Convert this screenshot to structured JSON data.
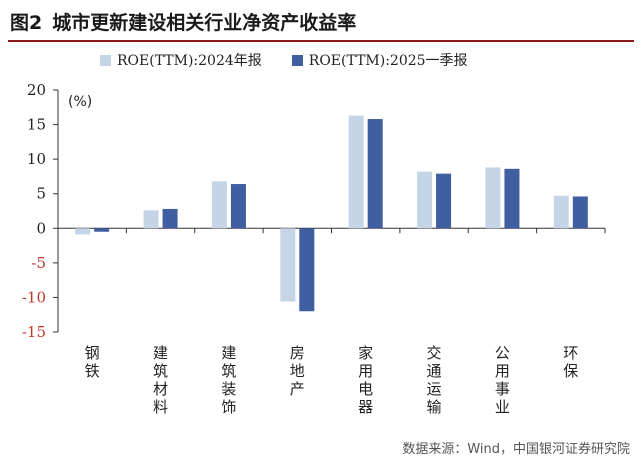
{
  "figure": {
    "label": "图2",
    "title": "城市更新建设相关行业净资产收益率",
    "source": "数据来源：Wind，中国银河证券研究院"
  },
  "colors": {
    "series_2024": "#c5d5e6",
    "series_2025": "#3f5fa0",
    "negative_tick": "#c0392b",
    "axis": "#333333",
    "title_rule": "#8b1a1a"
  },
  "chart_data": {
    "type": "bar",
    "title": "城市更新建设相关行业净资产收益率",
    "unit_label": "(%)",
    "ylim": [
      -15,
      20
    ],
    "yticks": [
      20,
      15,
      10,
      5,
      0,
      -5,
      -10,
      -15
    ],
    "grid": false,
    "legend_position": "top",
    "categories": [
      "钢铁",
      "建筑材料",
      "建筑装饰",
      "房地产",
      "家用电器",
      "交通运输",
      "公用事业",
      "环保"
    ],
    "series": [
      {
        "name": "ROE(TTM):2024年报",
        "values": [
          -0.9,
          2.6,
          6.8,
          -10.6,
          16.3,
          8.2,
          8.8,
          4.7
        ]
      },
      {
        "name": "ROE(TTM):2025一季报",
        "values": [
          -0.5,
          2.8,
          6.4,
          -12.0,
          15.8,
          7.9,
          8.6,
          4.6
        ]
      }
    ]
  }
}
